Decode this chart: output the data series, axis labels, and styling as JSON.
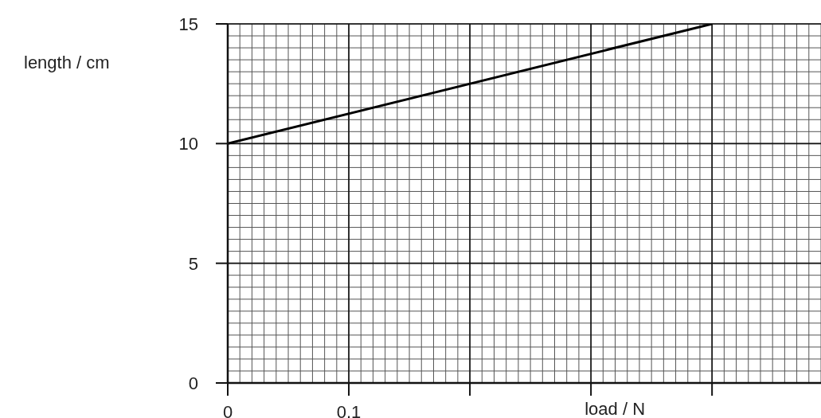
{
  "chart_data": {
    "type": "line",
    "xlabel": "load / N",
    "ylabel": "length / cm",
    "x": [
      0,
      0.4
    ],
    "series": [
      {
        "color": "#000000",
        "values": [
          10,
          15
        ]
      }
    ],
    "xlim": [
      0,
      0.49
    ],
    "xticks": [
      {
        "value": 0,
        "label": "0"
      },
      {
        "value": 0.1,
        "label": "0.1"
      },
      {
        "value": 0.2,
        "label": null
      },
      {
        "value": 0.3,
        "label": null
      },
      {
        "value": 0.4,
        "label": null
      }
    ],
    "ylim": [
      0,
      15
    ],
    "yticks": [
      0,
      5,
      10,
      15
    ],
    "grid": true
  }
}
